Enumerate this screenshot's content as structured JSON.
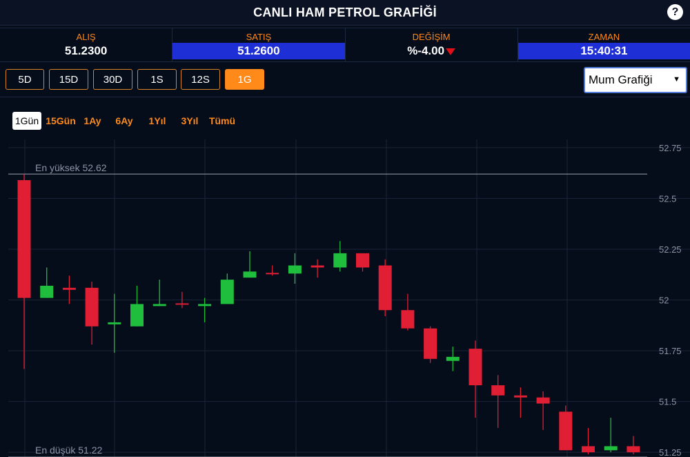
{
  "header": {
    "title": "CANLI HAM PETROL GRAFİĞİ",
    "help_label": "?"
  },
  "quotes": [
    {
      "label": "ALIŞ",
      "value": "51.2300"
    },
    {
      "label": "SATIŞ",
      "value": "51.2600"
    },
    {
      "label": "DEĞİŞİM",
      "value": "%-4.00"
    },
    {
      "label": "ZAMAN",
      "value": "15:40:31"
    }
  ],
  "periods": [
    {
      "label": "5D",
      "active": false
    },
    {
      "label": "15D",
      "active": false
    },
    {
      "label": "30D",
      "active": false
    },
    {
      "label": "1S",
      "active": false
    },
    {
      "label": "12S",
      "active": false
    },
    {
      "label": "1G",
      "active": true
    }
  ],
  "chart_type_select": {
    "value": "Mum Grafiği"
  },
  "ranges": [
    {
      "label": "1Gün",
      "active": true
    },
    {
      "label": "15Gün",
      "active": false
    },
    {
      "label": "1Ay",
      "active": false
    },
    {
      "label": "6Ay",
      "active": false
    },
    {
      "label": "1Yıl",
      "active": false
    },
    {
      "label": "3Yıl",
      "active": false
    },
    {
      "label": "Tümü",
      "active": false
    }
  ],
  "colors": {
    "up": "#1fbe3c",
    "down": "#e01f34",
    "accent": "#ff8a1a",
    "highlight": "#1f2fd6"
  },
  "chart_data": {
    "type": "candlestick",
    "ylim": [
      51.22,
      52.77
    ],
    "yticks": [
      52.75,
      52.5,
      52.25,
      52,
      51.75,
      51.5,
      51.25
    ],
    "ytick_labels": [
      "52.75",
      "52.5",
      "52.25",
      "52",
      "51.75",
      "51.5",
      "51.25"
    ],
    "grid": true,
    "high_line": {
      "label": "En yüksek 52.62",
      "value": 52.62
    },
    "low_line": {
      "label": "En düşük 51.22",
      "value": 51.22
    },
    "candles": [
      {
        "o": 52.59,
        "h": 52.62,
        "l": 51.66,
        "c": 52.01
      },
      {
        "o": 52.01,
        "h": 52.16,
        "l": 52.01,
        "c": 52.07
      },
      {
        "o": 52.06,
        "h": 52.12,
        "l": 51.98,
        "c": 52.05
      },
      {
        "o": 52.06,
        "h": 52.09,
        "l": 51.78,
        "c": 51.87
      },
      {
        "o": 51.88,
        "h": 52.03,
        "l": 51.74,
        "c": 51.89
      },
      {
        "o": 51.87,
        "h": 52.07,
        "l": 51.87,
        "c": 51.98
      },
      {
        "o": 51.97,
        "h": 52.1,
        "l": 51.97,
        "c": 51.98
      },
      {
        "o": 51.98,
        "h": 52.04,
        "l": 51.96,
        "c": 51.98
      },
      {
        "o": 51.97,
        "h": 52.01,
        "l": 51.89,
        "c": 51.98
      },
      {
        "o": 51.98,
        "h": 52.13,
        "l": 51.98,
        "c": 52.1
      },
      {
        "o": 52.11,
        "h": 52.24,
        "l": 52.11,
        "c": 52.14
      },
      {
        "o": 52.13,
        "h": 52.17,
        "l": 52.12,
        "c": 52.13
      },
      {
        "o": 52.13,
        "h": 52.23,
        "l": 52.08,
        "c": 52.17
      },
      {
        "o": 52.17,
        "h": 52.2,
        "l": 52.11,
        "c": 52.16
      },
      {
        "o": 52.16,
        "h": 52.29,
        "l": 52.14,
        "c": 52.23
      },
      {
        "o": 52.23,
        "h": 52.23,
        "l": 52.14,
        "c": 52.16
      },
      {
        "o": 52.17,
        "h": 52.2,
        "l": 51.92,
        "c": 51.95
      },
      {
        "o": 51.95,
        "h": 52.03,
        "l": 51.85,
        "c": 51.86
      },
      {
        "o": 51.86,
        "h": 51.87,
        "l": 51.69,
        "c": 51.71
      },
      {
        "o": 51.7,
        "h": 51.77,
        "l": 51.65,
        "c": 51.72
      },
      {
        "o": 51.76,
        "h": 51.8,
        "l": 51.42,
        "c": 51.58
      },
      {
        "o": 51.58,
        "h": 51.63,
        "l": 51.37,
        "c": 51.53
      },
      {
        "o": 51.53,
        "h": 51.57,
        "l": 51.42,
        "c": 51.52
      },
      {
        "o": 51.52,
        "h": 51.55,
        "l": 51.36,
        "c": 51.49
      },
      {
        "o": 51.45,
        "h": 51.48,
        "l": 51.26,
        "c": 51.26
      },
      {
        "o": 51.28,
        "h": 51.37,
        "l": 51.24,
        "c": 51.25
      },
      {
        "o": 51.26,
        "h": 51.42,
        "l": 51.25,
        "c": 51.28
      },
      {
        "o": 51.28,
        "h": 51.33,
        "l": 51.24,
        "c": 51.25
      }
    ]
  }
}
